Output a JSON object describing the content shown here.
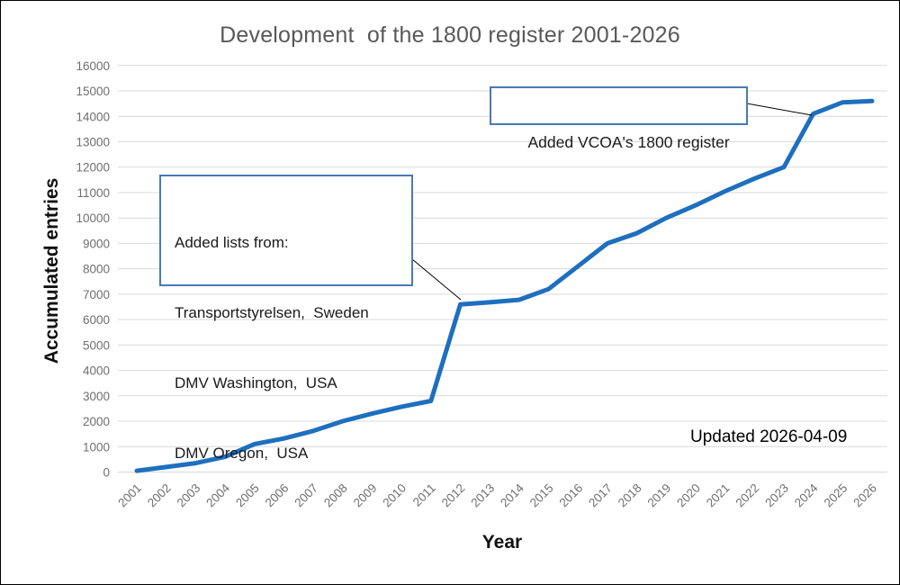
{
  "chart_data": {
    "type": "line",
    "title": "Development  of the 1800 register 2001-2026",
    "xlabel": "Year",
    "ylabel": "Accumulated entries",
    "x": [
      2001,
      2002,
      2003,
      2004,
      2005,
      2006,
      2007,
      2008,
      2009,
      2010,
      2011,
      2012,
      2013,
      2014,
      2015,
      2016,
      2017,
      2018,
      2019,
      2020,
      2021,
      2022,
      2023,
      2024,
      2025,
      2026
    ],
    "values": [
      50,
      200,
      350,
      600,
      1100,
      1320,
      1620,
      2000,
      2300,
      2570,
      2800,
      6600,
      6680,
      6780,
      7200,
      8100,
      9000,
      9400,
      10000,
      10500,
      11050,
      11550,
      12000,
      14100,
      14550,
      14600
    ],
    "ylim": [
      0,
      16000
    ],
    "ytick_step": 1000,
    "grid": true,
    "legend": "none",
    "line_color": "#1e6fbf",
    "gridline_color": "#d9d9d9",
    "tick_color": "#6f6f6f",
    "title_color": "#595959"
  },
  "annotations": {
    "added_lists": {
      "lines": [
        "Added lists from:",
        "Transportstyrelsen,  Sweden",
        "DMV Washington,  USA",
        "DMV Oregon,  USA"
      ]
    },
    "vcoa": {
      "text": "Added VCOA's 1800 register"
    },
    "updated": {
      "text": "Updated 2026-04-09"
    }
  }
}
